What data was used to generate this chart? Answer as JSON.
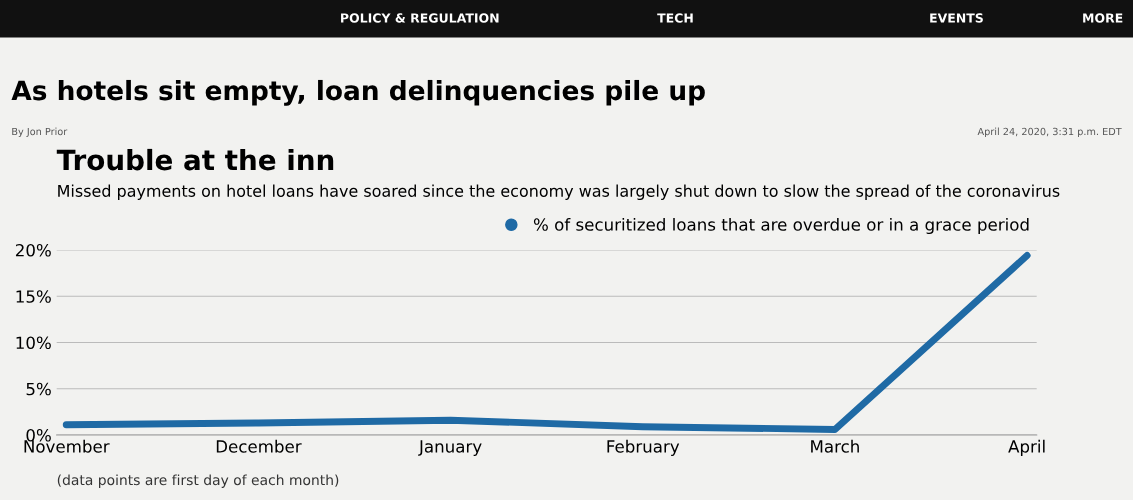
{
  "chart_data": {
    "type": "line",
    "title": "Trouble at the inn",
    "subtitle": "Missed payments on hotel loans have soared since the economy was largely shut down to slow the spread of the coronavirus",
    "categories": [
      "November",
      "December",
      "January",
      "February",
      "March",
      "April"
    ],
    "series": [
      {
        "name": "% of securitized loans that are overdue or in a grace period",
        "color": "#1f6aa5",
        "values": [
          1.1,
          1.3,
          1.6,
          0.9,
          0.6,
          19.4
        ]
      }
    ],
    "ylim": [
      0,
      20
    ],
    "yticks": [
      {
        "value": 0,
        "label": "0%"
      },
      {
        "value": 5,
        "label": "5%"
      },
      {
        "value": 10,
        "label": "10%"
      },
      {
        "value": 15,
        "label": "15%"
      },
      {
        "value": 20,
        "label": "20%"
      }
    ],
    "grid": "y",
    "legend": "top right",
    "marker": "none",
    "line_style": "solid",
    "annotations": [
      "POLICY & REGULATION",
      "TECH",
      "EVENTS",
      "MORE",
      "As hotels sit empty, loan delinquencies pile up",
      "By Jon Prior",
      "April 24, 2020, 3:31 p.m. EDT",
      "(data points are first day of each month)"
    ]
  }
}
